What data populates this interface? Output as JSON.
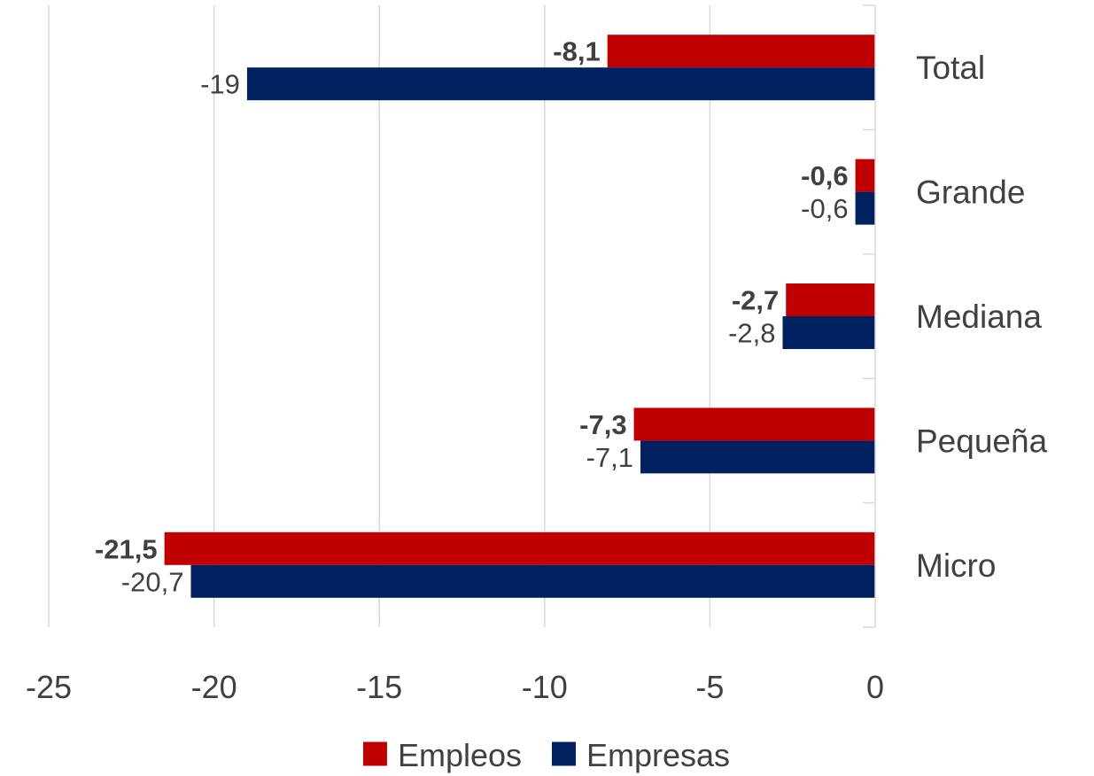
{
  "chart_data": {
    "type": "bar",
    "orientation": "horizontal",
    "categories": [
      "Total",
      "Grande",
      "Mediana",
      "Pequeña",
      "Micro"
    ],
    "series": [
      {
        "name": "Empleos",
        "color": "#C00000",
        "values": [
          -8.1,
          -0.6,
          -2.7,
          -7.3,
          -21.5
        ],
        "labels": [
          "-8,1",
          "-0,6",
          "-2,7",
          "-7,3",
          "-21,5"
        ],
        "label_bold": true
      },
      {
        "name": "Empresas",
        "color": "#002060",
        "values": [
          -19,
          -0.6,
          -2.8,
          -7.1,
          -20.7
        ],
        "labels": [
          "-19",
          "-0,6",
          "-2,8",
          "-7,1",
          "-20,7"
        ],
        "label_bold": false
      }
    ],
    "xlim": [
      -25,
      0
    ],
    "xticks": [
      -25,
      -20,
      -15,
      -10,
      -5,
      0
    ],
    "xtick_labels": [
      "-25",
      "-20",
      "-15",
      "-10",
      "-5",
      "0"
    ],
    "grid": "vertical",
    "legend": "bottom"
  }
}
